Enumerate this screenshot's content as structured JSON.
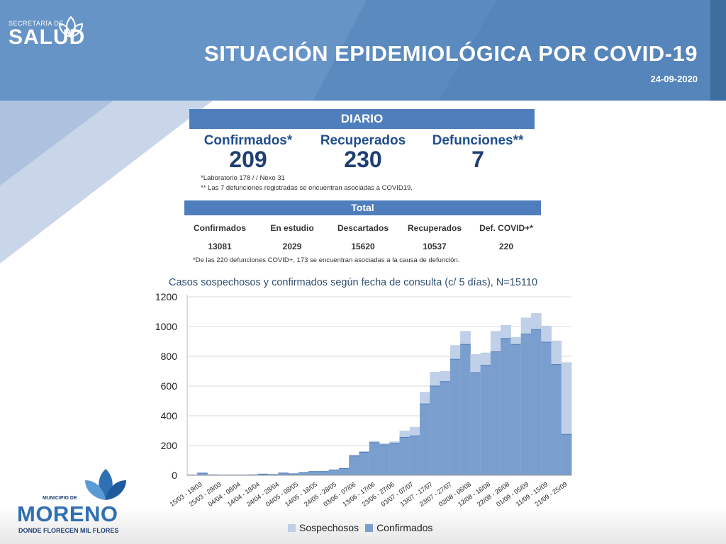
{
  "header": {
    "logo_small": "SECRETARÍA DE",
    "logo_big": "SALUD",
    "title": "SITUACIÓN EPIDEMIOLÓGICA POR COVID-19",
    "date": "24-09-2020"
  },
  "diario": {
    "heading": "DIARIO",
    "confirmados_label": "Confirmados*",
    "confirmados_value": "209",
    "recuperados_label": "Recuperados",
    "recuperados_value": "230",
    "defunciones_label": "Defunciones**",
    "defunciones_value": "7",
    "note1": "*Laboratorio 178 / / Nexo 31",
    "note2": "** Las 7 defunciones registradas se encuentran asociadas a COVID19."
  },
  "total": {
    "heading": "Total",
    "columns": [
      {
        "label": "Confirmados",
        "value": "13081"
      },
      {
        "label": "En estudio",
        "value": "2029"
      },
      {
        "label": "Descartados",
        "value": "15620"
      },
      {
        "label": "Recuperados",
        "value": "10537"
      },
      {
        "label": "Def. COVID+*",
        "value": "220"
      }
    ],
    "footnote": "*De las 220 defunciones COVID+, 173 se encuentran asociadas a la causa de defunción."
  },
  "footer": {
    "muni_top": "MUNICIPIO DE",
    "muni_name": "MORENO",
    "muni_slogan": "DONDE FLORECEN MIL FLORES"
  },
  "colors": {
    "header": "#5b8bbe",
    "bar": "#4f7ebd",
    "sospechosos": "#bfd0e8",
    "confirmados": "#7a9fcf"
  },
  "chart_data": {
    "type": "area",
    "title": "Casos sospechosos y confirmados según fecha de consulta (c/ 5 días), N=15110",
    "ylim": [
      0,
      1200
    ],
    "yticks": [
      0,
      200,
      400,
      600,
      800,
      1000,
      1200
    ],
    "grid": true,
    "legend_position": "bottom",
    "stacked": true,
    "xtick_labels": [
      "15/03 - 19/03",
      "25/03 - 29/03",
      "04/04 - 08/04",
      "14/04 - 18/04",
      "24/04 - 28/04",
      "04/05 - 08/05",
      "14/05 - 18/05",
      "24/05 - 28/05",
      "03/06 - 07/06",
      "13/06 - 17/06",
      "23/06 - 27/06",
      "03/07 - 07/07",
      "13/07 - 17/07",
      "23/07 - 27/07",
      "02/08 - 06/08",
      "12/08 - 16/08",
      "22/08 - 26/08",
      "01/09 - 05/09",
      "11/09 - 15/09",
      "21/09 - 25/09"
    ],
    "series": [
      {
        "name": "Confirmados",
        "values": [
          2,
          15,
          3,
          2,
          2,
          2,
          3,
          8,
          5,
          15,
          10,
          18,
          25,
          25,
          35,
          45,
          130,
          155,
          220,
          205,
          215,
          255,
          265,
          480,
          600,
          630,
          780,
          880,
          690,
          740,
          830,
          920,
          880,
          950,
          980,
          895,
          745,
          275
        ]
      },
      {
        "name": "Sospechosos",
        "values": [
          0,
          2,
          0,
          1,
          1,
          1,
          1,
          2,
          2,
          3,
          2,
          3,
          4,
          4,
          5,
          6,
          8,
          8,
          10,
          10,
          12,
          45,
          60,
          80,
          95,
          70,
          95,
          90,
          125,
          85,
          140,
          90,
          50,
          110,
          110,
          110,
          160,
          485
        ]
      }
    ]
  }
}
